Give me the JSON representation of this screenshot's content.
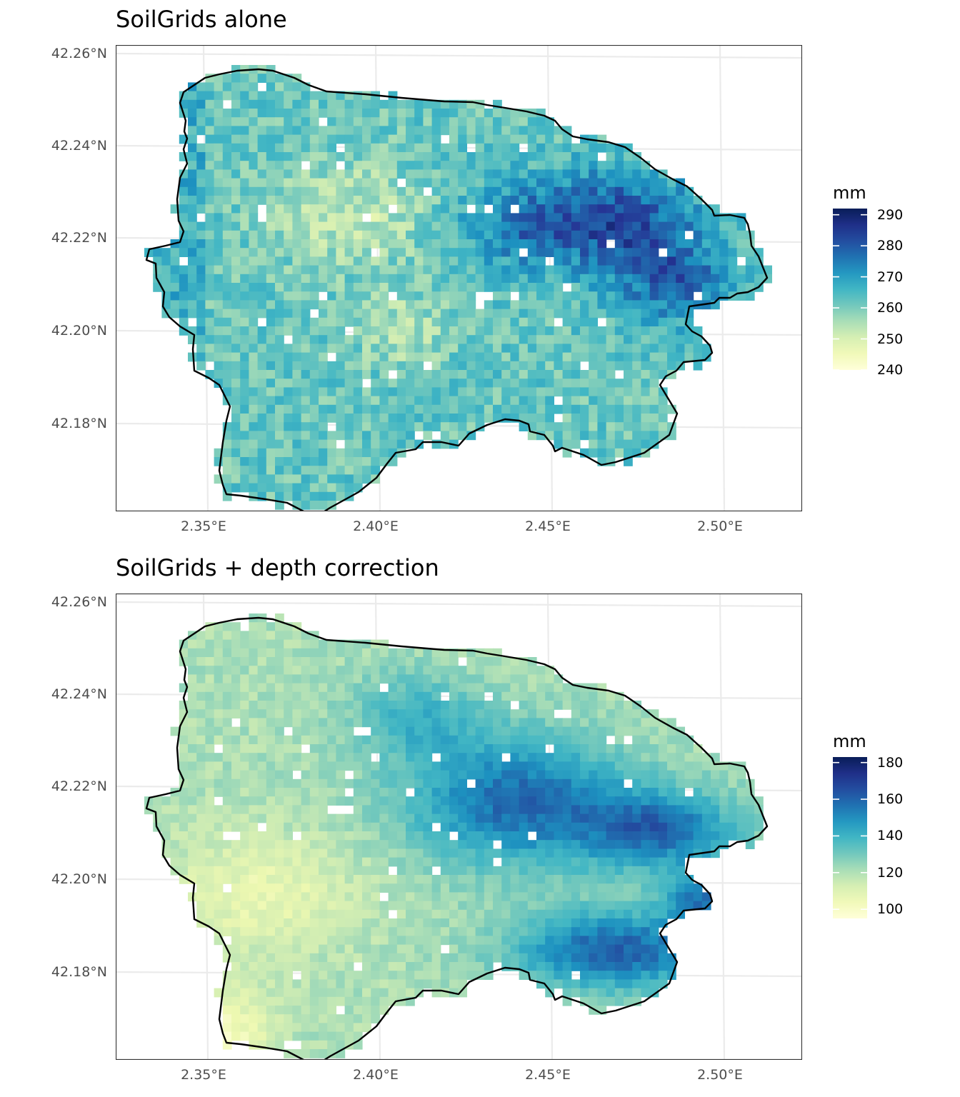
{
  "maps": [
    {
      "title": "SoilGrids alone",
      "legend_title": "mm",
      "legend_breaks": [
        "290",
        "280",
        "270",
        "260",
        "250",
        "240"
      ],
      "legend_range": [
        240,
        292
      ],
      "y_ticks": [
        "42.26°N",
        "42.24°N",
        "42.22°N",
        "42.20°N",
        "42.18°N"
      ],
      "x_ticks": [
        "2.35°E",
        "2.40°E",
        "2.45°E",
        "2.50°E"
      ],
      "colors": {
        "low": "#ffffd9",
        "mid": "#41b6c4",
        "high": "#081d58"
      },
      "value_summary": {
        "min": 240,
        "max": 292,
        "typical": 262
      }
    },
    {
      "title": "SoilGrids + depth correction",
      "legend_title": "mm",
      "legend_breaks": [
        "180",
        "160",
        "140",
        "120",
        "100"
      ],
      "legend_range": [
        95,
        183
      ],
      "y_ticks": [
        "42.26°N",
        "42.24°N",
        "42.22°N",
        "42.20°N",
        "42.18°N"
      ],
      "x_ticks": [
        "2.35°E",
        "2.40°E",
        "2.45°E",
        "2.50°E"
      ],
      "colors": {
        "low": "#ffffd9",
        "mid": "#41b6c4",
        "high": "#081d58"
      },
      "value_summary": {
        "min": 95,
        "max": 183,
        "typical": 125
      }
    }
  ]
}
